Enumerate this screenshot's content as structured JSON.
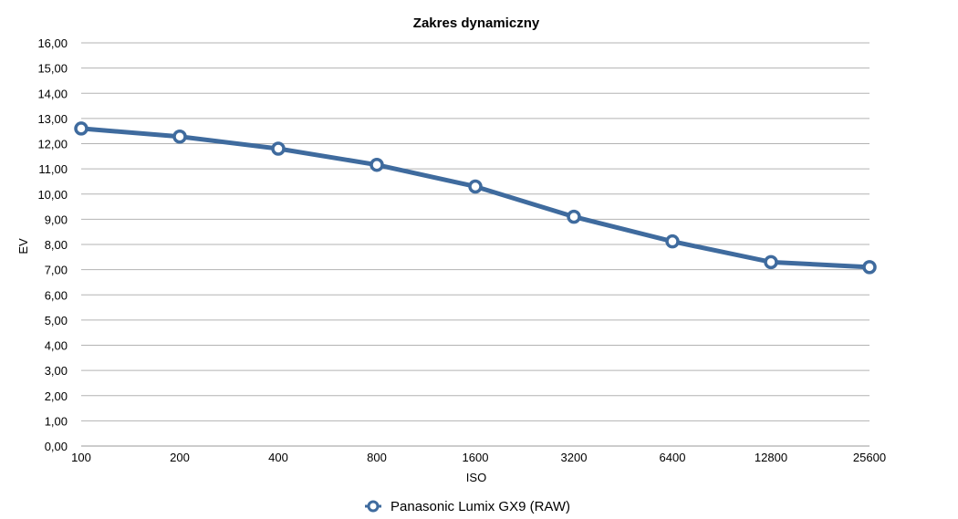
{
  "chart_data": {
    "type": "line",
    "title": "Zakres dynamiczny",
    "xlabel": "ISO",
    "ylabel": "EV",
    "categories": [
      "100",
      "200",
      "400",
      "800",
      "1600",
      "3200",
      "6400",
      "12800",
      "25600"
    ],
    "series": [
      {
        "name": "Panasonic Lumix GX9 (RAW)",
        "values": [
          12.6,
          12.28,
          11.8,
          11.16,
          10.3,
          9.1,
          8.12,
          7.3,
          7.1
        ],
        "color": "#3f6b9e"
      }
    ],
    "ylim": [
      0,
      16
    ],
    "yticks": [
      "0,00",
      "1,00",
      "2,00",
      "3,00",
      "4,00",
      "5,00",
      "6,00",
      "7,00",
      "8,00",
      "9,00",
      "10,00",
      "11,00",
      "12,00",
      "13,00",
      "14,00",
      "15,00",
      "16,00"
    ],
    "grid": true,
    "legend_position": "bottom-center",
    "marker": "hollow-circle"
  }
}
